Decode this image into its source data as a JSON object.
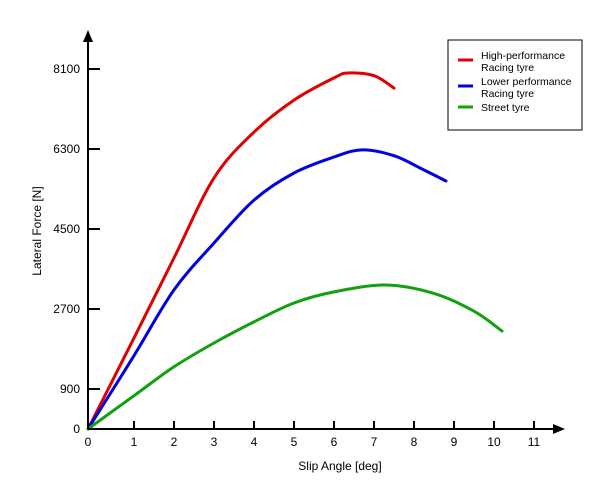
{
  "chart_data": {
    "type": "line",
    "title": "",
    "xlabel": "Slip Angle [deg]",
    "ylabel": "Lateral Force [N]",
    "xlim": [
      0,
      11.5
    ],
    "ylim": [
      0,
      8100
    ],
    "x_ticks": [
      0,
      1,
      2,
      3,
      4,
      5,
      6,
      7,
      8,
      9,
      10,
      11
    ],
    "x_tick_labels": [
      "0",
      "1",
      "2",
      "3",
      "4",
      "5",
      "6",
      "7",
      "8",
      "9",
      "10",
      "11"
    ],
    "y_ticks": [
      900,
      2700,
      4500,
      6300,
      8100
    ],
    "y_tick_labels": [
      "900",
      "2700",
      "4500",
      "6300",
      "8100"
    ],
    "y_zero_label": "0",
    "grid": false,
    "legend_position": "top-right",
    "series": [
      {
        "name": "High-performance Racing tyre",
        "legend_lines": [
          "High-performance",
          "Racing tyre"
        ],
        "color": "#e00000",
        "x": [
          0,
          1,
          2,
          3,
          4,
          5,
          6,
          6.35,
          7,
          7.5
        ],
        "y": [
          0,
          2050,
          3850,
          5650,
          6680,
          7400,
          7900,
          8010,
          7950,
          7670
        ]
      },
      {
        "name": "Lower performance Racing tyre",
        "legend_lines": [
          "Lower performance",
          "Racing tyre"
        ],
        "color": "#0000e0",
        "x": [
          0,
          1,
          2,
          3,
          4,
          5,
          6,
          6.7,
          7.5,
          8.2,
          8.8
        ],
        "y": [
          0,
          1650,
          3130,
          4185,
          5150,
          5760,
          6120,
          6280,
          6150,
          5850,
          5580
        ]
      },
      {
        "name": "Street tyre",
        "legend_lines": [
          "Street tyre"
        ],
        "color": "#10a010",
        "x": [
          0,
          1,
          2,
          3,
          4,
          5,
          6,
          7.3,
          8.5,
          9.5,
          10.2
        ],
        "y": [
          0,
          750,
          1400,
          1935,
          2410,
          2835,
          3085,
          3240,
          3050,
          2650,
          2205
        ]
      }
    ]
  }
}
